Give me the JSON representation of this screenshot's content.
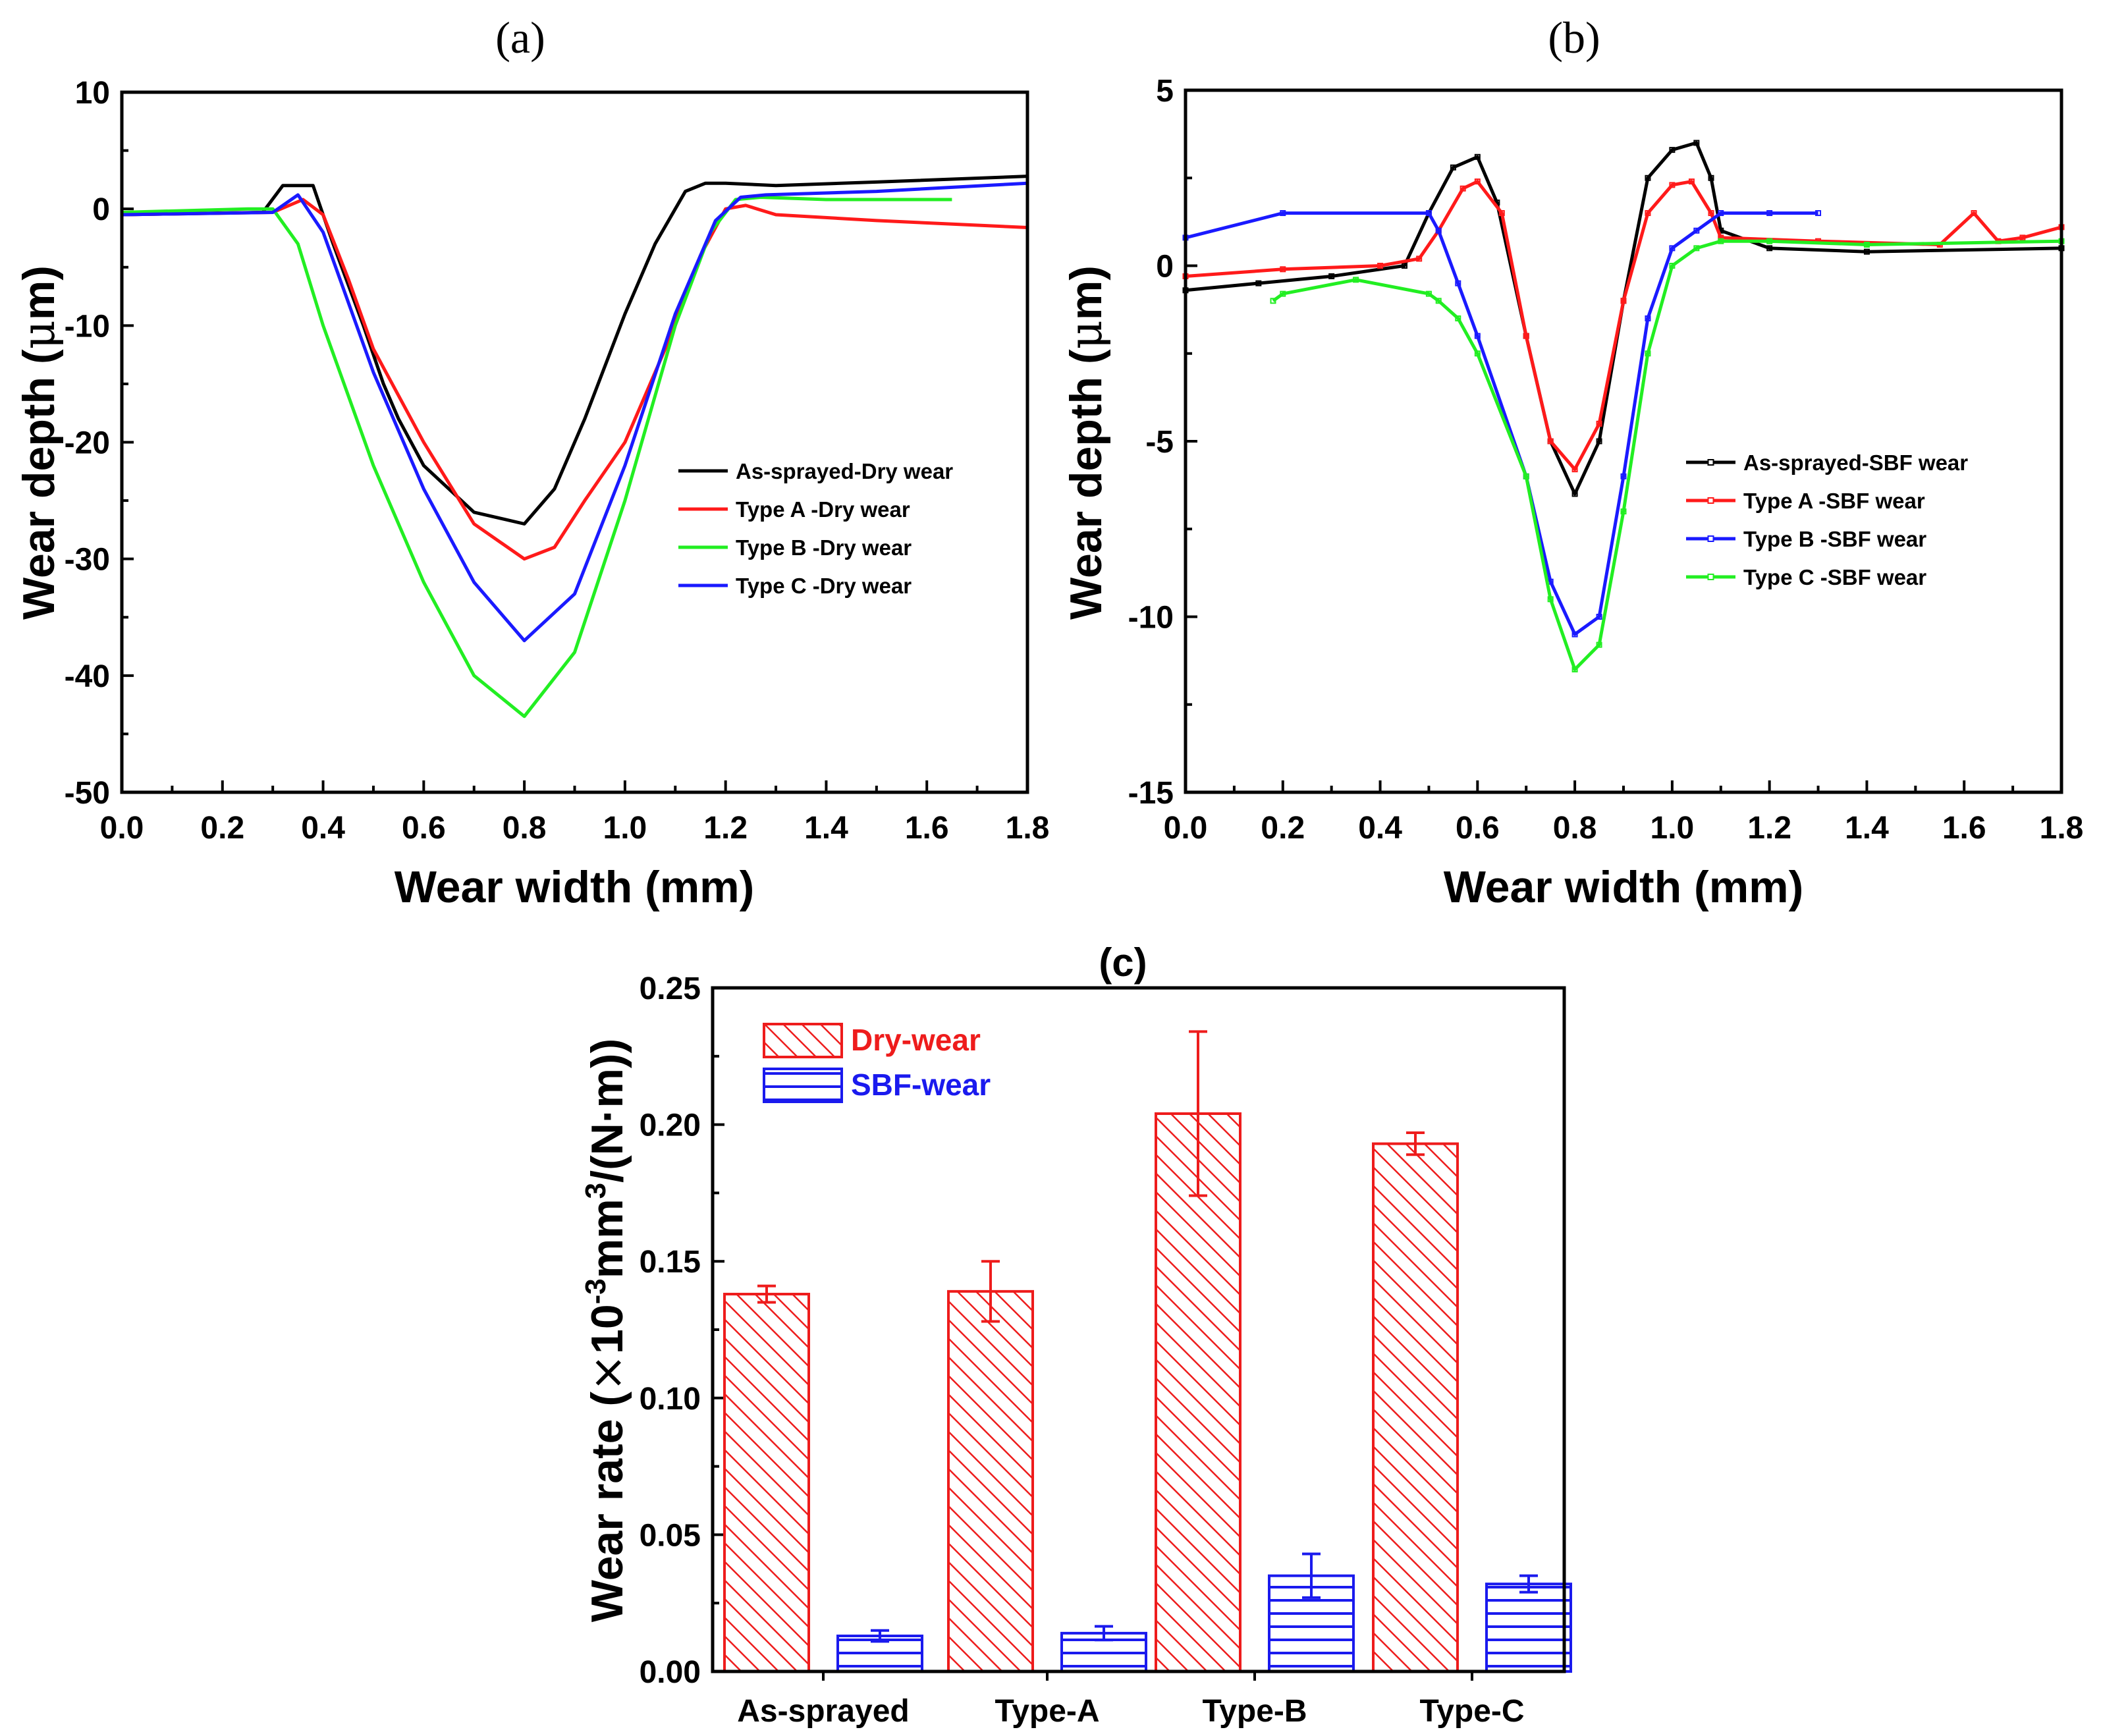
{
  "colors": {
    "black": "#000000",
    "red": "#ff1a1a",
    "green": "#22ee22",
    "blue": "#1a1aff",
    "dry": "#ee1c1c",
    "sbf": "#1a1aee"
  },
  "chart_data": [
    {
      "panel": "(a)",
      "type": "line",
      "xlabel": "Wear width (mm)",
      "ylabel": "Wear depth (μm)",
      "ylabel_parts": {
        "main": "Wear depth (",
        "mu": "μ",
        "unit": "m)"
      },
      "xlim": [
        0.0,
        1.8
      ],
      "ylim": [
        -50,
        10
      ],
      "xticks": [
        "0.0",
        "0.2",
        "0.4",
        "0.6",
        "0.8",
        "1.0",
        "1.2",
        "1.4",
        "1.6",
        "1.8"
      ],
      "yticks": [
        "10",
        "0",
        "-10",
        "-20",
        "-30",
        "-40",
        "-50"
      ],
      "legend_position": "center-right",
      "series": [
        {
          "name": "As-sprayed-Dry wear",
          "color": "#000000",
          "x": [
            0,
            0.28,
            0.32,
            0.38,
            0.42,
            0.48,
            0.52,
            0.55,
            0.6,
            0.7,
            0.8,
            0.86,
            0.92,
            1.0,
            1.06,
            1.12,
            1.16,
            1.2,
            1.3,
            1.5,
            1.8
          ],
          "y": [
            -0.5,
            -0.3,
            2,
            2,
            -3,
            -10,
            -15,
            -18,
            -22,
            -26,
            -27,
            -24,
            -18,
            -9,
            -3,
            1.5,
            2.2,
            2.2,
            2,
            2.3,
            2.8
          ]
        },
        {
          "name": "Type A -Dry wear",
          "color": "#ff1a1a",
          "x": [
            0,
            0.3,
            0.36,
            0.4,
            0.45,
            0.5,
            0.6,
            0.7,
            0.8,
            0.86,
            0.92,
            1.0,
            1.08,
            1.15,
            1.2,
            1.24,
            1.3,
            1.5,
            1.8
          ],
          "y": [
            -0.5,
            -0.3,
            0.8,
            -0.5,
            -6,
            -12,
            -20,
            -27,
            -30,
            -29,
            -25,
            -20,
            -12,
            -4,
            0,
            0.3,
            -0.5,
            -1,
            -1.6
          ]
        },
        {
          "name": "Type B -Dry wear",
          "color": "#22ee22",
          "x": [
            0,
            0.25,
            0.3,
            0.35,
            0.4,
            0.5,
            0.6,
            0.7,
            0.8,
            0.9,
            1.0,
            1.1,
            1.17,
            1.22,
            1.27,
            1.4,
            1.65
          ],
          "y": [
            -0.3,
            0,
            0,
            -3,
            -10,
            -22,
            -32,
            -40,
            -43.5,
            -38,
            -25,
            -10,
            -2,
            0.8,
            1,
            0.8,
            0.8
          ]
        },
        {
          "name": "Type C -Dry wear",
          "color": "#1a1aff",
          "x": [
            0,
            0.3,
            0.35,
            0.4,
            0.5,
            0.6,
            0.7,
            0.8,
            0.9,
            1.0,
            1.1,
            1.18,
            1.23,
            1.28,
            1.5,
            1.8
          ],
          "y": [
            -0.5,
            -0.3,
            1.2,
            -2,
            -14,
            -24,
            -32,
            -37,
            -33,
            -22,
            -9,
            -1,
            1,
            1.2,
            1.5,
            2.2
          ]
        }
      ]
    },
    {
      "panel": "(b)",
      "type": "line",
      "xlabel": "Wear width (mm)",
      "ylabel": "Wear depth (μm)",
      "ylabel_parts": {
        "main": "Wear depth (",
        "mu": "μ",
        "unit": "m)"
      },
      "xlim": [
        0.0,
        1.8
      ],
      "ylim": [
        -15,
        5
      ],
      "xticks": [
        "0.0",
        "0.2",
        "0.4",
        "0.6",
        "0.8",
        "1.0",
        "1.2",
        "1.4",
        "1.6",
        "1.8"
      ],
      "yticks": [
        "5",
        "0",
        "-5",
        "-10",
        "-15"
      ],
      "legend_position": "center-right",
      "series": [
        {
          "name": "As-sprayed-SBF wear",
          "color": "#000000",
          "x": [
            0,
            0.15,
            0.3,
            0.45,
            0.5,
            0.55,
            0.6,
            0.64,
            0.7,
            0.75,
            0.8,
            0.85,
            0.9,
            0.95,
            1.0,
            1.05,
            1.08,
            1.1,
            1.2,
            1.4,
            1.8
          ],
          "y": [
            -0.7,
            -0.5,
            -0.3,
            0,
            1.5,
            2.8,
            3.1,
            1.8,
            -2,
            -5,
            -6.5,
            -5,
            -1,
            2.5,
            3.3,
            3.5,
            2.5,
            1,
            0.5,
            0.4,
            0.5
          ]
        },
        {
          "name": "Type A -SBF wear",
          "color": "#ff1a1a",
          "x": [
            0,
            0.2,
            0.4,
            0.48,
            0.52,
            0.57,
            0.6,
            0.65,
            0.7,
            0.75,
            0.8,
            0.85,
            0.9,
            0.95,
            1.0,
            1.04,
            1.08,
            1.1,
            1.3,
            1.55,
            1.62,
            1.67,
            1.72,
            1.8
          ],
          "y": [
            -0.3,
            -0.1,
            0,
            0.2,
            1,
            2.2,
            2.4,
            1.5,
            -2,
            -5,
            -5.8,
            -4.5,
            -1,
            1.5,
            2.3,
            2.4,
            1.5,
            0.8,
            0.7,
            0.6,
            1.5,
            0.7,
            0.8,
            1.1
          ]
        },
        {
          "name": "Type B -SBF wear",
          "color": "#1a1aff",
          "x": [
            0,
            0.2,
            0.5,
            0.52,
            0.56,
            0.6,
            0.7,
            0.75,
            0.8,
            0.85,
            0.9,
            0.95,
            1.0,
            1.05,
            1.1,
            1.2,
            1.3
          ],
          "y": [
            0.8,
            1.5,
            1.5,
            1,
            -0.5,
            -2,
            -6,
            -9,
            -10.5,
            -10,
            -6,
            -1.5,
            0.5,
            1,
            1.5,
            1.5,
            1.5
          ]
        },
        {
          "name": "Type C -SBF wear",
          "color": "#22ee22",
          "x": [
            0.18,
            0.2,
            0.35,
            0.5,
            0.52,
            0.56,
            0.6,
            0.7,
            0.75,
            0.8,
            0.85,
            0.9,
            0.95,
            1.0,
            1.05,
            1.1,
            1.2,
            1.4,
            1.8
          ],
          "y": [
            -1,
            -0.8,
            -0.4,
            -0.8,
            -1,
            -1.5,
            -2.5,
            -6,
            -9.5,
            -11.5,
            -10.8,
            -7,
            -2.5,
            0,
            0.5,
            0.7,
            0.7,
            0.6,
            0.7
          ]
        }
      ]
    },
    {
      "panel": "(c)",
      "type": "bar",
      "ylabel": "Wear rate (×10⁻³mm³/(N·m))",
      "ylabel_parts": {
        "a": "Wear rate (",
        "times": "×",
        "b": "10",
        "exp1": "-3",
        "c": "mm",
        "exp2": "3",
        "d": "/(N·m))"
      },
      "ylim": [
        0,
        0.25
      ],
      "yticks": [
        "0.00",
        "0.05",
        "0.10",
        "0.15",
        "0.20",
        "0.25"
      ],
      "categories": [
        "As-sprayed",
        "Type-A",
        "Type-B",
        "Type-C"
      ],
      "legend_position": "top-left",
      "series": [
        {
          "name": "Dry-wear",
          "color": "#ee1c1c",
          "values": [
            0.138,
            0.139,
            0.204,
            0.193
          ],
          "errors": [
            0.003,
            0.011,
            0.03,
            0.004
          ]
        },
        {
          "name": "SBF-wear",
          "color": "#1a1aee",
          "values": [
            0.013,
            0.014,
            0.035,
            0.032
          ],
          "errors": [
            0.002,
            0.0025,
            0.008,
            0.003
          ]
        }
      ]
    }
  ]
}
